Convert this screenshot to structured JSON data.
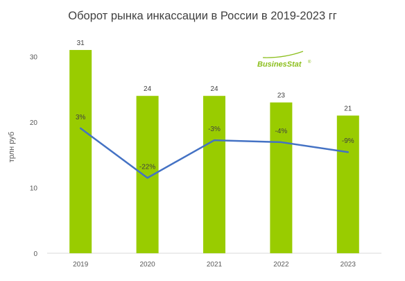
{
  "chart_data": {
    "type": "bar",
    "title": "Оборот рынка инкассации в России в 2019-2023 гг",
    "xlabel": "",
    "ylabel": "трлн руб",
    "categories": [
      "2019",
      "2020",
      "2021",
      "2022",
      "2023"
    ],
    "series": [
      {
        "type": "bar",
        "values": [
          31,
          24,
          24,
          23,
          21
        ],
        "value_labels": [
          "31",
          "24",
          "24",
          "23",
          "21"
        ],
        "color": "#99cc00"
      },
      {
        "type": "line",
        "axis": "secondary",
        "values": [
          3,
          -22,
          -3,
          -4,
          -9
        ],
        "value_labels": [
          "3%",
          "-22%",
          "-3%",
          "-4%",
          "-9%"
        ],
        "color": "#4472c4"
      }
    ],
    "ylim": [
      0,
      33
    ],
    "yticks": [
      "0",
      "10",
      "20",
      "30"
    ],
    "grid": false,
    "legend": "none"
  },
  "watermark": {
    "text": "BusinesStat",
    "mark": "®",
    "color": "#8cbf1d"
  }
}
